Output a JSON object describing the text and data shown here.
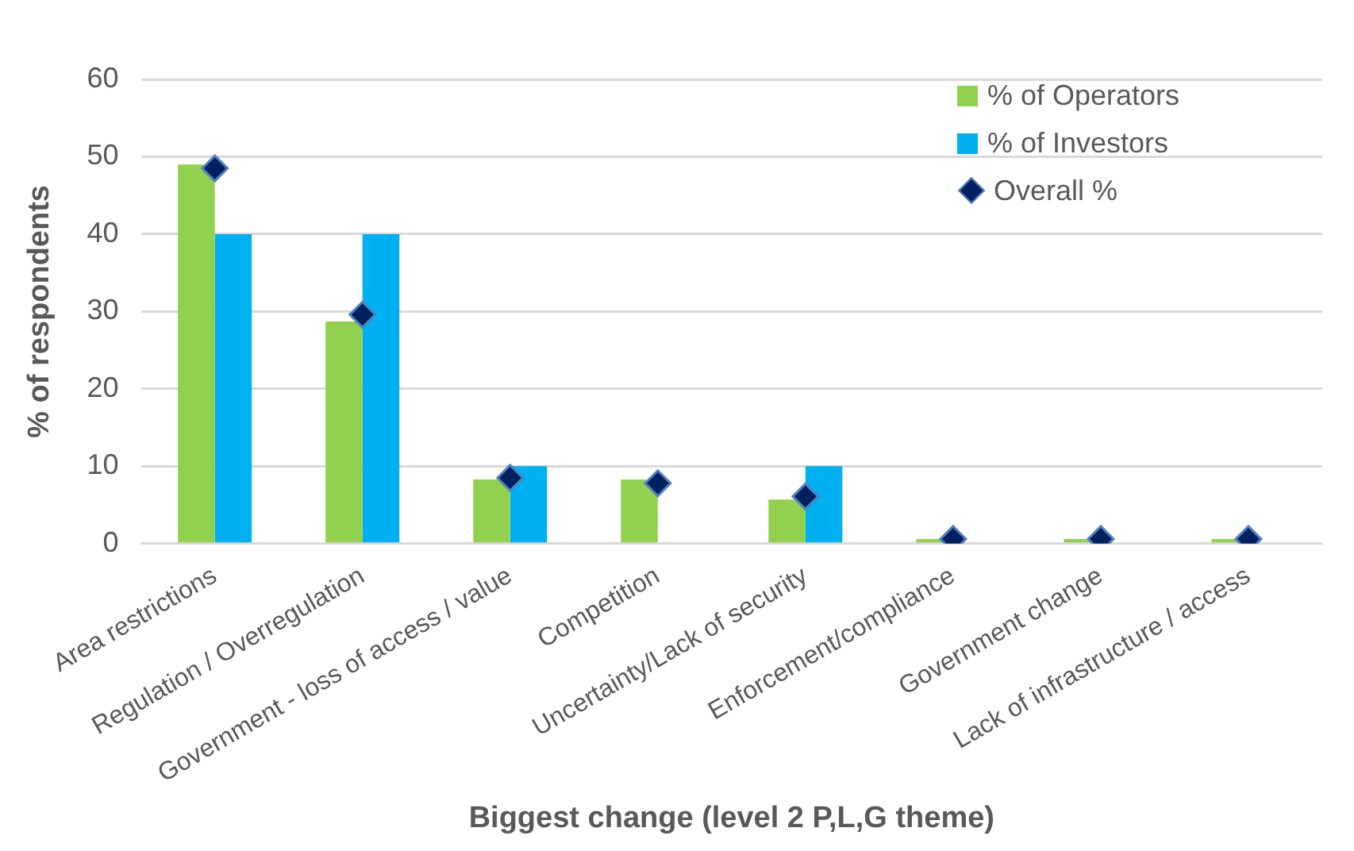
{
  "chart_data": {
    "type": "bar",
    "xlabel": "Biggest change (level 2 P,L,G theme)",
    "ylabel": "% of respondents",
    "categories": [
      "Area restrictions",
      "Regulation / Overregulation",
      "Government - loss of access / value",
      "Competition",
      "Uncertainty/Lack of security",
      "Enforcement/compliance",
      "Government change",
      "Lack of infrastructure / access"
    ],
    "series": [
      {
        "name": "% of Operators",
        "color": "#92d050",
        "values": [
          49,
          28.7,
          8.3,
          8.3,
          5.7,
          0.6,
          0.6,
          0.6
        ]
      },
      {
        "name": "% of Investors",
        "color": "#00b0f0",
        "values": [
          40,
          40,
          10,
          0,
          10,
          0,
          0,
          0
        ]
      },
      {
        "name": "Overall %",
        "type": "scatter",
        "marker": "diamond",
        "color": "#002060",
        "x": [
          "Area restrictions",
          "Regulation / Overregulation",
          "Government - loss of access / value",
          "Competition",
          "Uncertainty/Lack of security",
          "Enforcement/compliance",
          "Government change",
          "Lack of infrastructure / access"
        ],
        "values": [
          48.5,
          29.6,
          8.5,
          7.8,
          6.1,
          0.6,
          0.6,
          0.6
        ]
      }
    ],
    "ylim": [
      0,
      60
    ],
    "yticks": [
      0,
      10,
      20,
      30,
      40,
      50,
      60
    ],
    "grid": "y",
    "legend": "top right"
  }
}
